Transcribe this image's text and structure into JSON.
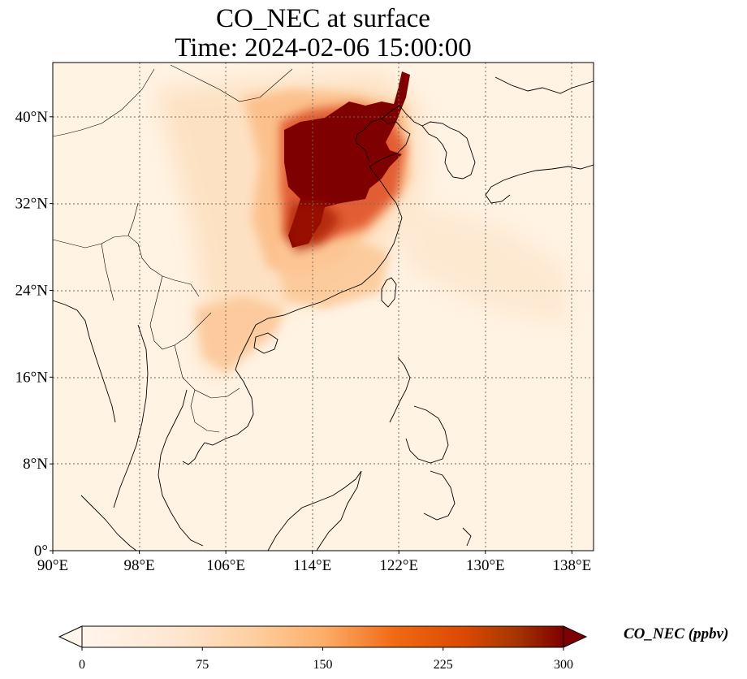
{
  "title": {
    "line1": "CO_NEC at surface",
    "line2": "Time: 2024-02-06 15:00:00"
  },
  "map": {
    "extent": {
      "lon": [
        90,
        140
      ],
      "lat": [
        0,
        45
      ]
    },
    "lon_ticks": [
      {
        "value": 90,
        "label": "90°E"
      },
      {
        "value": 98,
        "label": "98°E"
      },
      {
        "value": 106,
        "label": "106°E"
      },
      {
        "value": 114,
        "label": "114°E"
      },
      {
        "value": 122,
        "label": "122°E"
      },
      {
        "value": 130,
        "label": "130°E"
      },
      {
        "value": 138,
        "label": "138°E"
      }
    ],
    "lat_ticks": [
      {
        "value": 0,
        "label": "0°"
      },
      {
        "value": 8,
        "label": "8°N"
      },
      {
        "value": 16,
        "label": "16°N"
      },
      {
        "value": 24,
        "label": "24°N"
      },
      {
        "value": 32,
        "label": "32°N"
      },
      {
        "value": 40,
        "label": "40°N"
      }
    ],
    "gridlines": true,
    "colormap": [
      "#fff5eb",
      "#fdd3a5",
      "#fd9c52",
      "#e95e1d",
      "#b22a01",
      "#7f0000"
    ]
  },
  "colorbar": {
    "label": "CO_NEC (ppbv)",
    "min": 0,
    "max": 300,
    "ticks": [
      "0",
      "75",
      "150",
      "225",
      "300"
    ],
    "extend": "both"
  }
}
